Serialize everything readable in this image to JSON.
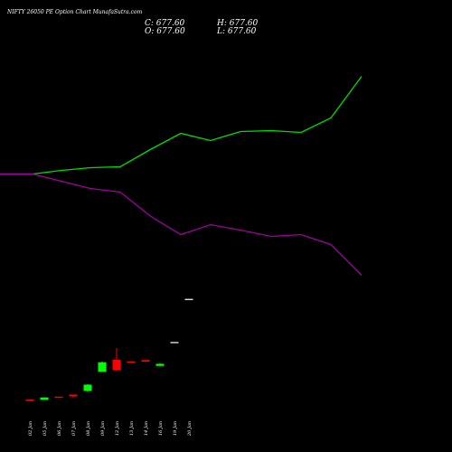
{
  "header": {
    "title": "NIFTY 26050  PE Option  Chart MunafaSutra.com",
    "close": "C: 677.60",
    "high": "H: 677.60",
    "open": "O: 677.60",
    "low": "L: 677.60"
  },
  "colors": {
    "background": "#000000",
    "up": "#00ff00",
    "down": "#ff0000",
    "upper_band": "#00dd00",
    "lower_band": "#a000a0",
    "flat": "#dddddd"
  },
  "chart_data": {
    "type": "candlestick",
    "title": "NIFTY 26050  PE Option  Chart MunafaSutra.com",
    "categories": [
      "02 Jan",
      "05 Jan",
      "06 Jan",
      "07 Jan",
      "08 Jan",
      "09 Jan",
      "12 Jan",
      "13 Jan",
      "14 Jan",
      "16 Jan",
      "19 Jan",
      "20 Jan"
    ],
    "candles": [
      {
        "date": "02 Jan",
        "open": 232,
        "high": 232.5,
        "low": 229.5,
        "close": 230
      },
      {
        "date": "05 Jan",
        "open": 230.5,
        "high": 242,
        "low": 230,
        "close": 241.5
      },
      {
        "date": "06 Jan",
        "open": 245,
        "high": 245,
        "low": 244.5,
        "close": 244.5
      },
      {
        "date": "07 Jan",
        "open": 254,
        "high": 254,
        "low": 243,
        "close": 246
      },
      {
        "date": "08 Jan",
        "open": 270,
        "high": 300,
        "low": 268,
        "close": 298
      },
      {
        "date": "09 Jan",
        "open": 355,
        "high": 400,
        "low": 355,
        "close": 397
      },
      {
        "date": "12 Jan",
        "open": 408,
        "high": 460,
        "low": 358,
        "close": 362
      },
      {
        "date": "13 Jan",
        "open": 401,
        "high": 402,
        "low": 400,
        "close": 400
      },
      {
        "date": "14 Jan",
        "open": 407,
        "high": 407,
        "low": 398,
        "close": 400
      },
      {
        "date": "16 Jan",
        "open": 381,
        "high": 393,
        "low": 381,
        "close": 390
      },
      {
        "date": "19 Jan",
        "open": 487,
        "high": 487,
        "low": 487,
        "close": 487
      },
      {
        "date": "20 Jan",
        "open": 677.6,
        "high": 677.6,
        "low": 677.6,
        "close": 677.6
      }
    ],
    "upper_band": [
      {
        "x": 0,
        "y": 1230
      },
      {
        "x": 36,
        "y": 1230
      },
      {
        "x": 68,
        "y": 1246
      },
      {
        "x": 100,
        "y": 1258
      },
      {
        "x": 133,
        "y": 1262
      },
      {
        "x": 167,
        "y": 1340
      },
      {
        "x": 200,
        "y": 1410
      },
      {
        "x": 233,
        "y": 1378
      },
      {
        "x": 266,
        "y": 1418
      },
      {
        "x": 300,
        "y": 1422
      },
      {
        "x": 333,
        "y": 1414
      },
      {
        "x": 366,
        "y": 1478
      },
      {
        "x": 400,
        "y": 1662
      }
    ],
    "lower_band": [
      {
        "x": 0,
        "y": 1230
      },
      {
        "x": 36,
        "y": 1230
      },
      {
        "x": 68,
        "y": 1198
      },
      {
        "x": 100,
        "y": 1166
      },
      {
        "x": 133,
        "y": 1150
      },
      {
        "x": 167,
        "y": 1042
      },
      {
        "x": 200,
        "y": 962
      },
      {
        "x": 233,
        "y": 1006
      },
      {
        "x": 266,
        "y": 982
      },
      {
        "x": 300,
        "y": 954
      },
      {
        "x": 333,
        "y": 962
      },
      {
        "x": 366,
        "y": 918
      },
      {
        "x": 400,
        "y": 782
      }
    ],
    "ylim": [
      0,
      2000
    ],
    "grid": false
  }
}
